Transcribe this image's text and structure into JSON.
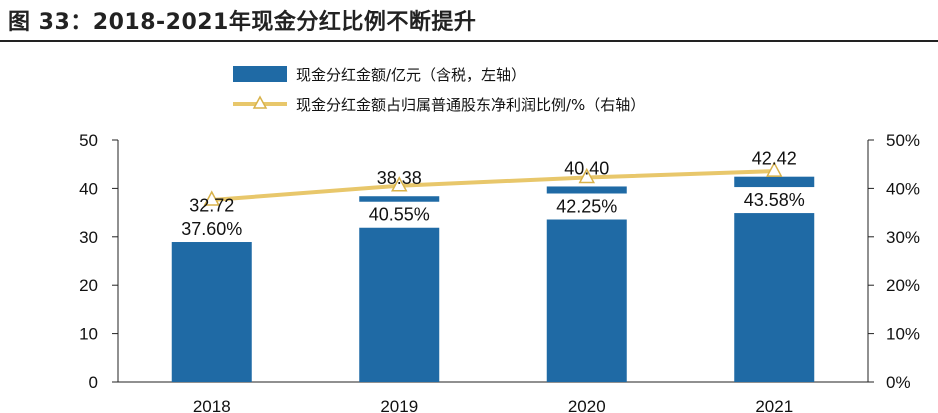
{
  "figure": {
    "title": "图 33：2018-2021年现金分红比例不断提升"
  },
  "colors": {
    "bar": "#1f6aa5",
    "line": "#e8c76b",
    "marker_fill": "#ffffff",
    "marker_stroke": "#d8b24a",
    "axis": "#222222"
  },
  "chart_data": {
    "type": "bar",
    "categories": [
      "2018",
      "2019",
      "2020",
      "2021"
    ],
    "series": [
      {
        "name": "现金分红金额/亿元（含税，左轴）",
        "type": "bar",
        "axis": "left",
        "values": [
          32.72,
          38.38,
          40.4,
          42.42
        ],
        "labels": [
          "32.72",
          "38.38",
          "40.40",
          "42.42"
        ]
      },
      {
        "name": "现金分红金额占归属普通股东净利润比例/%（右轴）",
        "type": "line",
        "axis": "right",
        "values": [
          37.6,
          40.55,
          42.25,
          43.58
        ],
        "labels": [
          "37.60%",
          "40.55%",
          "42.25%",
          "43.58%"
        ]
      }
    ],
    "y_left": {
      "ylim": [
        0,
        50
      ],
      "ticks": [
        0,
        10,
        20,
        30,
        40,
        50
      ],
      "tick_labels": [
        "0",
        "10",
        "20",
        "30",
        "40",
        "50"
      ]
    },
    "y_right": {
      "ylim": [
        0,
        50
      ],
      "ticks": [
        0,
        10,
        20,
        30,
        40,
        50
      ],
      "tick_labels": [
        "0%",
        "10%",
        "20%",
        "30%",
        "40%",
        "50%"
      ]
    },
    "grid": false,
    "legend": "top-center"
  }
}
